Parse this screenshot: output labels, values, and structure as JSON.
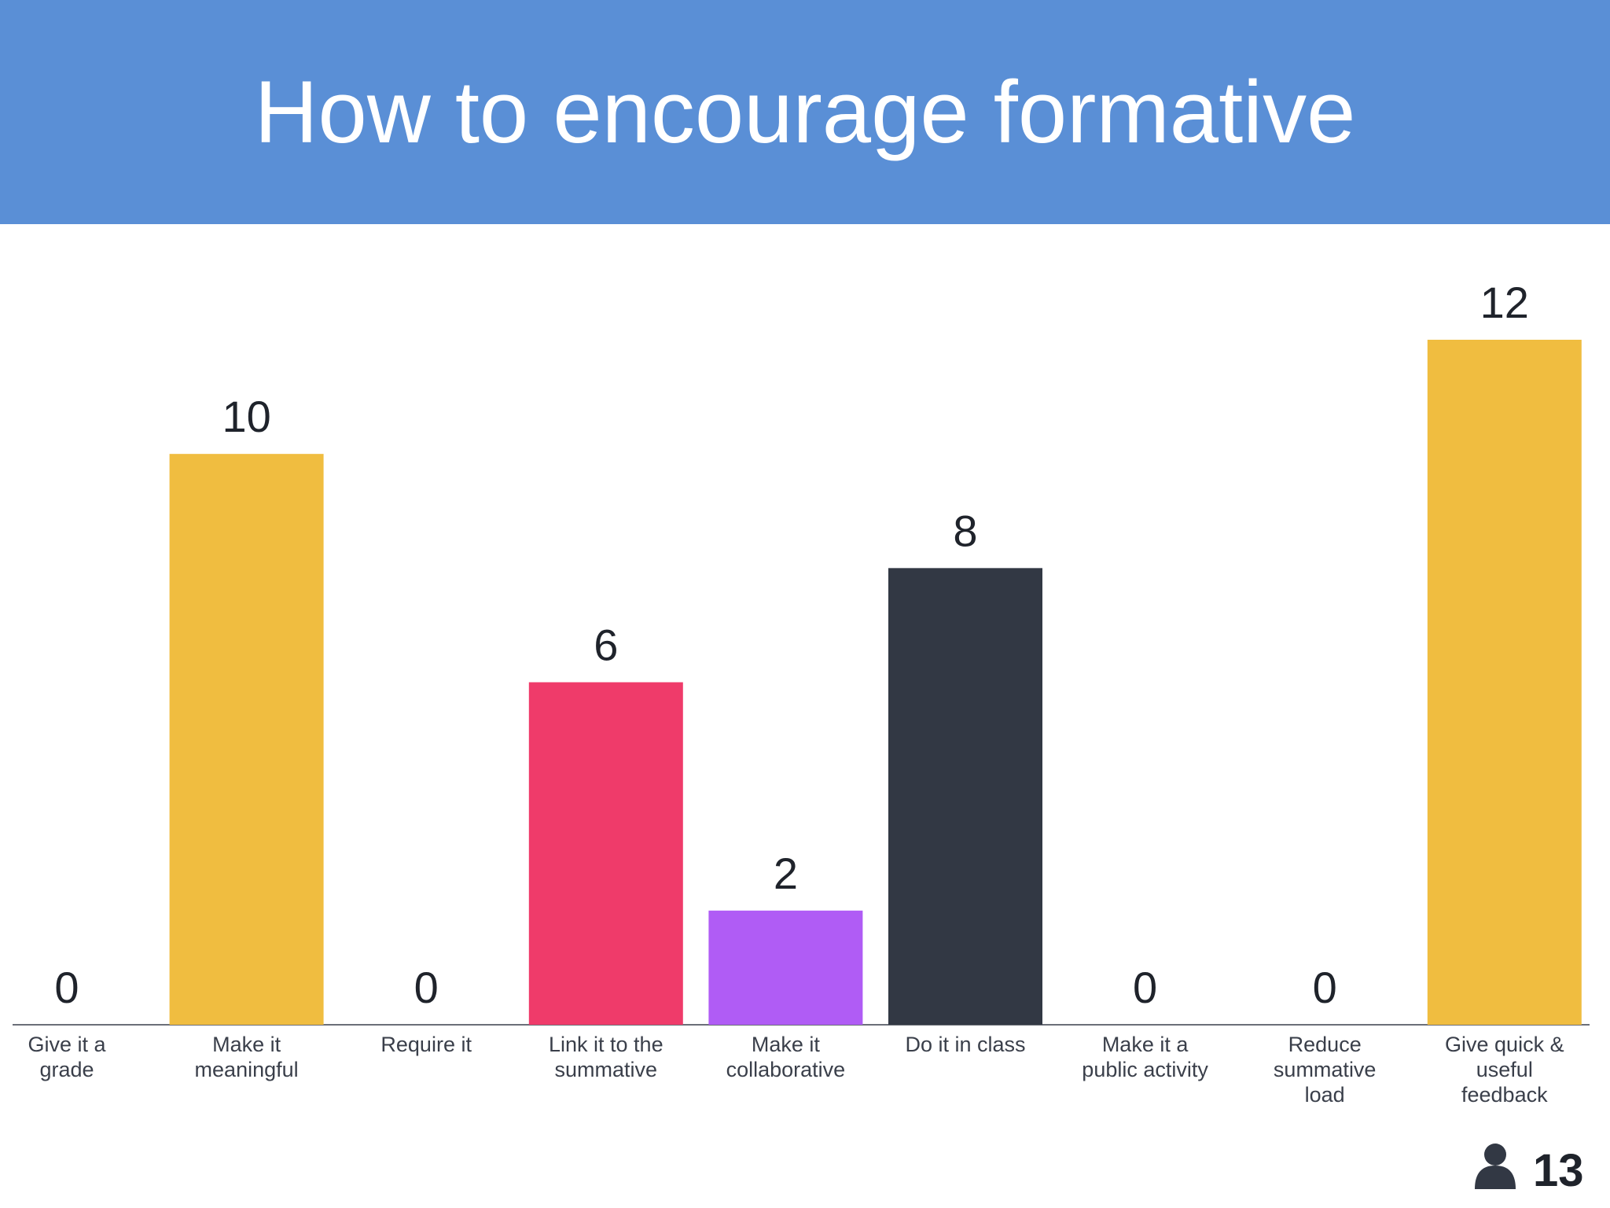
{
  "chart_data": {
    "type": "bar",
    "title": "How to encourage formative",
    "categories": [
      "Give it a grade",
      "Make it meaningful",
      "Require it",
      "Link it to the summative",
      "Make it collaborative",
      "Do it in class",
      "Make it a public activity",
      "Reduce summative load",
      "Give quick & useful feedback"
    ],
    "values": [
      0,
      10,
      0,
      6,
      2,
      8,
      0,
      0,
      12
    ],
    "colors": [
      "#f0bd40",
      "#f0bd40",
      "#f0bd40",
      "#ef3b6a",
      "#b05cf5",
      "#323844",
      "#f0bd40",
      "#f0bd40",
      "#f0bd40"
    ],
    "responses": 13
  }
}
